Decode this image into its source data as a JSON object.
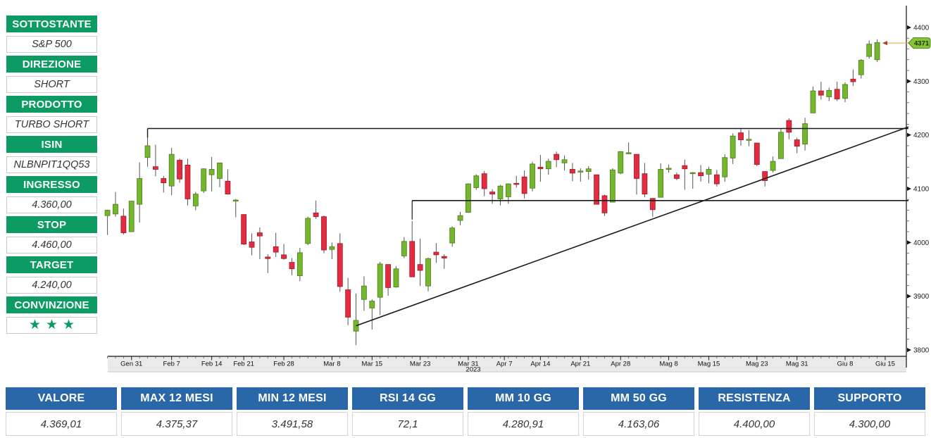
{
  "colors": {
    "panel_green": "#0d9b64",
    "table_blue": "#2a67a9",
    "candle_up": "#74b62c",
    "candle_down": "#e42b3f",
    "candle_up_stroke": "#4c7d1d",
    "candle_down_stroke": "#9d1a2b",
    "wick": "#555555",
    "trend_line": "#1a1a1a",
    "axis_band": "#eaeaea",
    "price_label_bg": "#85c636",
    "price_label_border": "#4e8418",
    "price_arrow_line": "#e0a23c",
    "price_arrow_head": "#b03a2e"
  },
  "trade_panel": {
    "rows": [
      {
        "type": "header",
        "label": "SOTTOSTANTE"
      },
      {
        "type": "value",
        "label": "S&P 500"
      },
      {
        "type": "header",
        "label": "DIREZIONE"
      },
      {
        "type": "value",
        "label": "SHORT"
      },
      {
        "type": "header",
        "label": "PRODOTTO"
      },
      {
        "type": "value",
        "label": "TURBO SHORT"
      },
      {
        "type": "header",
        "label": "ISIN"
      },
      {
        "type": "value",
        "label": "NLBNPIT1QQ53"
      },
      {
        "type": "header",
        "label": "INGRESSO"
      },
      {
        "type": "value",
        "label": "4.360,00"
      },
      {
        "type": "header",
        "label": "STOP"
      },
      {
        "type": "value",
        "label": "4.460,00"
      },
      {
        "type": "header",
        "label": "TARGET"
      },
      {
        "type": "value",
        "label": "4.240,00"
      },
      {
        "type": "header",
        "label": "CONVINZIONE"
      },
      {
        "type": "stars",
        "label": "★★★"
      }
    ]
  },
  "stats_table": {
    "columns": [
      {
        "header": "VALORE",
        "value": "4.369,01"
      },
      {
        "header": "MAX 12 MESI",
        "value": "4.375,37"
      },
      {
        "header": "MIN 12 MESI",
        "value": "3.491,58"
      },
      {
        "header": "RSI 14 GG",
        "value": "72,1"
      },
      {
        "header": "MM 10 GG",
        "value": "4.280,91"
      },
      {
        "header": "MM 50 GG",
        "value": "4.163,06"
      },
      {
        "header": "RESISTENZA",
        "value": "4.400,00"
      },
      {
        "header": "SUPPORTO",
        "value": "4.300,00"
      }
    ]
  },
  "chart_data": {
    "type": "candlestick",
    "symbol": "S&P 500",
    "year_label": "2023",
    "y_axis": {
      "min": 3800,
      "max": 4400,
      "major_ticks": [
        4400,
        4300,
        4200,
        4100,
        4000,
        3900,
        3800
      ],
      "minor_step": 20
    },
    "x_ticks": [
      {
        "label": "Gen 31",
        "index": 3
      },
      {
        "label": "Feb 7",
        "index": 8
      },
      {
        "label": "Feb 14",
        "index": 13
      },
      {
        "label": "Feb 21",
        "index": 17
      },
      {
        "label": "Feb 28",
        "index": 22
      },
      {
        "label": "Mar 8",
        "index": 28
      },
      {
        "label": "Mar 15",
        "index": 33
      },
      {
        "label": "Mar 23",
        "index": 39
      },
      {
        "label": "Mar 31",
        "index": 45
      },
      {
        "label": "Apr 7",
        "index": 49.5
      },
      {
        "label": "Apr 14",
        "index": 54
      },
      {
        "label": "Apr 21",
        "index": 59
      },
      {
        "label": "Apr 28",
        "index": 64
      },
      {
        "label": "Mag 8",
        "index": 70
      },
      {
        "label": "Mag 15",
        "index": 75
      },
      {
        "label": "Mag 23",
        "index": 81
      },
      {
        "label": "Mag 31",
        "index": 86
      },
      {
        "label": "Giu 8",
        "index": 92
      },
      {
        "label": "Giu 15",
        "index": 97
      }
    ],
    "last_price": {
      "text": "4371",
      "value": 4371
    },
    "annotations": {
      "resistance_line": {
        "price": 4212,
        "start_index": 5
      },
      "support_line": {
        "price": 4078,
        "start_index": 38
      },
      "trendline": {
        "from_index": 31,
        "from_price": 3845,
        "to_price": 4215
      }
    },
    "candles": [
      [
        "Gen 26",
        4050,
        4061,
        4014,
        4060
      ],
      [
        "Gen 27",
        4053,
        4094,
        4048,
        4071
      ],
      [
        "Gen 30",
        4049,
        4063,
        4015,
        4018
      ],
      [
        "Gen 31",
        4020,
        4077,
        4020,
        4077
      ],
      [
        "Feb 1",
        4071,
        4149,
        4037,
        4119
      ],
      [
        "Feb 2",
        4158,
        4195,
        4141,
        4180
      ],
      [
        "Feb 3",
        4141,
        4182,
        4123,
        4136
      ],
      [
        "Feb 6",
        4119,
        4124,
        4093,
        4111
      ],
      [
        "Feb 7",
        4105,
        4176,
        4088,
        4164
      ],
      [
        "Feb 8",
        4153,
        4156,
        4111,
        4118
      ],
      [
        "Feb 9",
        4144,
        4156,
        4069,
        4081
      ],
      [
        "Feb 10",
        4068,
        4094,
        4060,
        4090
      ],
      [
        "Feb 13",
        4096,
        4138,
        4092,
        4137
      ],
      [
        "Feb 14",
        4126,
        4159,
        4095,
        4136
      ],
      [
        "Feb 15",
        4119,
        4148,
        4103,
        4148
      ],
      [
        "Feb 16",
        4114,
        4136,
        4089,
        4090
      ],
      [
        "Feb 17",
        4077,
        4081,
        4047,
        4079
      ],
      [
        "Feb 21",
        4052,
        4052,
        3995,
        3997
      ],
      [
        "Feb 22",
        4001,
        4017,
        3976,
        3991
      ],
      [
        "Feb 23",
        4018,
        4028,
        3969,
        4012
      ],
      [
        "Feb 24",
        3973,
        3978,
        3943,
        3970
      ],
      [
        "Feb 27",
        3992,
        4018,
        3973,
        3982
      ],
      [
        "Feb 28",
        3977,
        3997,
        3968,
        3970
      ],
      [
        "Mar 1",
        3963,
        3971,
        3939,
        3951
      ],
      [
        "Mar 2",
        3938,
        3990,
        3928,
        3981
      ],
      [
        "Mar 3",
        3998,
        4048,
        3995,
        4045
      ],
      [
        "Mar 6",
        4055,
        4078,
        4044,
        4048
      ],
      [
        "Mar 7",
        4048,
        4050,
        3980,
        3986
      ],
      [
        "Mar 8",
        3987,
        4000,
        3969,
        3992
      ],
      [
        "Mar 9",
        3998,
        4017,
        3908,
        3918
      ],
      [
        "Mar 10",
        3912,
        3934,
        3846,
        3861
      ],
      [
        "Mar 13",
        3835,
        3905,
        3809,
        3855
      ],
      [
        "Mar 14",
        3894,
        3937,
        3873,
        3919
      ],
      [
        "Mar 15",
        3878,
        3894,
        3838,
        3891
      ],
      [
        "Mar 16",
        3898,
        3964,
        3865,
        3960
      ],
      [
        "Mar 17",
        3959,
        3959,
        3901,
        3916
      ],
      [
        "Mar 20",
        3917,
        3956,
        3916,
        3951
      ],
      [
        "Mar 21",
        3975,
        4010,
        3971,
        4002
      ],
      [
        "Mar 22",
        4002,
        4040,
        3936,
        3936
      ],
      [
        "Mar 23",
        3959,
        4007,
        3919,
        3948
      ],
      [
        "Mar 24",
        3919,
        3972,
        3909,
        3970
      ],
      [
        "Mar 27",
        3982,
        3999,
        3962,
        3977
      ],
      [
        "Mar 28",
        3974,
        3978,
        3951,
        3971
      ],
      [
        "Mar 29",
        3999,
        4030,
        3992,
        4027
      ],
      [
        "Mar 30",
        4041,
        4057,
        4032,
        4050
      ],
      [
        "Mar 31",
        4056,
        4110,
        4056,
        4109
      ],
      [
        "Apr 3",
        4102,
        4127,
        4098,
        4124
      ],
      [
        "Apr 4",
        4128,
        4133,
        4086,
        4100
      ],
      [
        "Apr 5",
        4094,
        4099,
        4072,
        4090
      ],
      [
        "Apr 6",
        4081,
        4107,
        4069,
        4105
      ],
      [
        "Apr 10",
        4085,
        4110,
        4072,
        4109
      ],
      [
        "Apr 11",
        4110,
        4124,
        4102,
        4108
      ],
      [
        "Apr 12",
        4122,
        4134,
        4082,
        4091
      ],
      [
        "Apr 13",
        4101,
        4150,
        4095,
        4146
      ],
      [
        "Apr 14",
        4140,
        4163,
        4113,
        4137
      ],
      [
        "Apr 17",
        4137,
        4156,
        4126,
        4151
      ],
      [
        "Apr 18",
        4164,
        4169,
        4140,
        4154
      ],
      [
        "Apr 19",
        4148,
        4162,
        4134,
        4154
      ],
      [
        "Apr 20",
        4136,
        4148,
        4114,
        4129
      ],
      [
        "Apr 21",
        4132,
        4138,
        4113,
        4133
      ],
      [
        "Apr 24",
        4132,
        4142,
        4117,
        4137
      ],
      [
        "Apr 25",
        4126,
        4126,
        4071,
        4071
      ],
      [
        "Apr 26",
        4087,
        4089,
        4049,
        4055
      ],
      [
        "Apr 27",
        4075,
        4138,
        4075,
        4135
      ],
      [
        "Apr 28",
        4129,
        4170,
        4127,
        4169
      ],
      [
        "Mag 1",
        4166,
        4186,
        4164,
        4167
      ],
      [
        "Mag 2",
        4164,
        4164,
        4089,
        4119
      ],
      [
        "Mag 3",
        4128,
        4148,
        4084,
        4090
      ],
      [
        "Mag 4",
        4082,
        4082,
        4048,
        4061
      ],
      [
        "Mag 5",
        4084,
        4147,
        4084,
        4136
      ],
      [
        "Mag 8",
        4136,
        4145,
        4130,
        4138
      ],
      [
        "Mag 9",
        4126,
        4130,
        4116,
        4119
      ],
      [
        "Mag 10",
        4143,
        4154,
        4098,
        4137
      ],
      [
        "Mag 11",
        4129,
        4131,
        4100,
        4130
      ],
      [
        "Mag 12",
        4130,
        4144,
        4113,
        4124
      ],
      [
        "Mag 15",
        4127,
        4141,
        4110,
        4136
      ],
      [
        "Mag 16",
        4126,
        4135,
        4104,
        4109
      ],
      [
        "Mag 17",
        4122,
        4164,
        4113,
        4158
      ],
      [
        "Mag 18",
        4157,
        4203,
        4146,
        4198
      ],
      [
        "Mag 19",
        4204,
        4213,
        4180,
        4191
      ],
      [
        "Mag 22",
        4191,
        4209,
        4179,
        4192
      ],
      [
        "Mag 23",
        4185,
        4185,
        4142,
        4145
      ],
      [
        "Mag 24",
        4132,
        4132,
        4104,
        4115
      ],
      [
        "Mag 25",
        4134,
        4160,
        4130,
        4151
      ],
      [
        "Mag 26",
        4156,
        4212,
        4156,
        4205
      ],
      [
        "Mag 30",
        4227,
        4231,
        4192,
        4205
      ],
      [
        "Mag 31",
        4191,
        4195,
        4166,
        4179
      ],
      [
        "Giu 1",
        4183,
        4232,
        4171,
        4221
      ],
      [
        "Giu 2",
        4241,
        4290,
        4241,
        4282
      ],
      [
        "Giu 5",
        4282,
        4299,
        4266,
        4274
      ],
      [
        "Giu 6",
        4271,
        4288,
        4263,
        4283
      ],
      [
        "Giu 7",
        4285,
        4299,
        4263,
        4267
      ],
      [
        "Giu 8",
        4268,
        4298,
        4261,
        4294
      ],
      [
        "Giu 9",
        4304,
        4322,
        4291,
        4299
      ],
      [
        "Giu 12",
        4312,
        4341,
        4305,
        4339
      ],
      [
        "Giu 13",
        4346,
        4376,
        4342,
        4369
      ],
      [
        "Giu 14",
        4340,
        4378,
        4336,
        4372
      ]
    ]
  }
}
